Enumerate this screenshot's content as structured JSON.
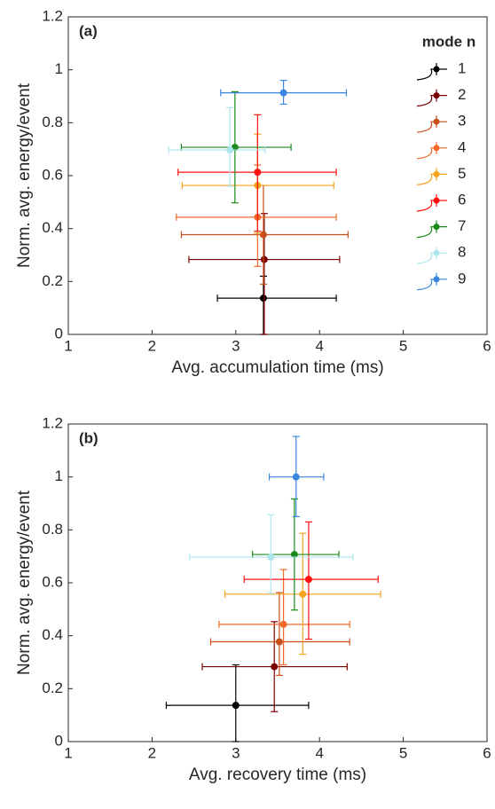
{
  "chart_data": [
    {
      "type": "errorbar-scatter",
      "panel_label": "(a)",
      "xlabel": "Avg. accumulation time (ms)",
      "ylabel": "Norm. avg. energy/event",
      "xlim": [
        1,
        6
      ],
      "ylim": [
        0,
        1.2
      ],
      "xticks": [
        1,
        2,
        3,
        4,
        5,
        6
      ],
      "yticks": [
        0,
        0.2,
        0.4,
        0.6,
        0.8,
        1,
        1.2
      ],
      "legend_title": "mode n",
      "legend_position": "upper right",
      "series": [
        {
          "name": "1",
          "color": "#000000",
          "x": [
            3.33
          ],
          "values": [
            0.137
          ],
          "x_low": [
            2.78
          ],
          "x_high": [
            4.2
          ],
          "y_low": [
            0
          ],
          "y_high": [
            0.22
          ]
        },
        {
          "name": "2",
          "color": "#7a0000",
          "x": [
            3.34
          ],
          "values": [
            0.283
          ],
          "x_low": [
            2.44
          ],
          "x_high": [
            4.24
          ],
          "y_low": [
            0
          ],
          "y_high": [
            0.457
          ]
        },
        {
          "name": "3",
          "color": "#c8501a",
          "x": [
            3.33
          ],
          "values": [
            0.377
          ],
          "x_low": [
            2.35
          ],
          "x_high": [
            4.34
          ],
          "y_low": [
            0.19
          ],
          "y_high": [
            0.563
          ]
        },
        {
          "name": "4",
          "color": "#f06a2a",
          "x": [
            3.26
          ],
          "values": [
            0.443
          ],
          "x_low": [
            2.29
          ],
          "x_high": [
            4.2
          ],
          "y_low": [
            0.257
          ],
          "y_high": [
            0.64
          ]
        },
        {
          "name": "5",
          "color": "#f7a21b",
          "x": [
            3.26
          ],
          "values": [
            0.563
          ],
          "x_low": [
            2.36
          ],
          "x_high": [
            4.17
          ],
          "y_low": [
            0.383
          ],
          "y_high": [
            0.757
          ]
        },
        {
          "name": "6",
          "color": "#ff1010",
          "x": [
            3.26
          ],
          "values": [
            0.613
          ],
          "x_low": [
            2.31
          ],
          "x_high": [
            4.2
          ],
          "y_low": [
            0.39
          ],
          "y_high": [
            0.83
          ]
        },
        {
          "name": "7",
          "color": "#1a8a1a",
          "x": [
            2.99
          ],
          "values": [
            0.707
          ],
          "x_low": [
            2.35
          ],
          "x_high": [
            3.66
          ],
          "y_low": [
            0.497
          ],
          "y_high": [
            0.917
          ]
        },
        {
          "name": "8",
          "color": "#aee6ee",
          "x": [
            2.93
          ],
          "values": [
            0.697
          ],
          "x_low": [
            2.2
          ],
          "x_high": [
            3.35
          ],
          "y_low": [
            0.56
          ],
          "y_high": [
            0.857
          ]
        },
        {
          "name": "9",
          "color": "#3a86e0",
          "x": [
            3.57
          ],
          "values": [
            0.913
          ],
          "x_low": [
            2.82
          ],
          "x_high": [
            4.32
          ],
          "y_low": [
            0.87
          ],
          "y_high": [
            0.96
          ]
        }
      ]
    },
    {
      "type": "errorbar-scatter",
      "panel_label": "(b)",
      "xlabel": "Avg. recovery time (ms)",
      "ylabel": "Norm. avg. energy/event",
      "xlim": [
        1,
        6
      ],
      "ylim": [
        0,
        1.2
      ],
      "xticks": [
        1,
        2,
        3,
        4,
        5,
        6
      ],
      "yticks": [
        0,
        0.2,
        0.4,
        0.6,
        0.8,
        1,
        1.2
      ],
      "series": [
        {
          "color": "#000000",
          "x": [
            3.0
          ],
          "values": [
            0.137
          ],
          "x_low": [
            2.17
          ],
          "x_high": [
            3.87
          ],
          "y_low": [
            0
          ],
          "y_high": [
            0.29
          ]
        },
        {
          "color": "#7a0000",
          "x": [
            3.46
          ],
          "values": [
            0.283
          ],
          "x_low": [
            2.6
          ],
          "x_high": [
            4.33
          ],
          "y_low": [
            0.113
          ],
          "y_high": [
            0.453
          ]
        },
        {
          "color": "#c8501a",
          "x": [
            3.52
          ],
          "values": [
            0.377
          ],
          "x_low": [
            2.7
          ],
          "x_high": [
            4.36
          ],
          "y_low": [
            0.25
          ],
          "y_high": [
            0.563
          ]
        },
        {
          "color": "#f06a2a",
          "x": [
            3.57
          ],
          "values": [
            0.443
          ],
          "x_low": [
            2.8
          ],
          "x_high": [
            4.36
          ],
          "y_low": [
            0.29
          ],
          "y_high": [
            0.65
          ]
        },
        {
          "color": "#f7a21b",
          "x": [
            3.8
          ],
          "values": [
            0.557
          ],
          "x_low": [
            2.87
          ],
          "x_high": [
            4.73
          ],
          "y_low": [
            0.33
          ],
          "y_high": [
            0.787
          ]
        },
        {
          "color": "#ff1010",
          "x": [
            3.87
          ],
          "values": [
            0.613
          ],
          "x_low": [
            3.1
          ],
          "x_high": [
            4.7
          ],
          "y_low": [
            0.387
          ],
          "y_high": [
            0.83
          ]
        },
        {
          "color": "#1a8a1a",
          "x": [
            3.7
          ],
          "values": [
            0.707
          ],
          "x_low": [
            3.2
          ],
          "x_high": [
            4.23
          ],
          "y_low": [
            0.497
          ],
          "y_high": [
            0.917
          ]
        },
        {
          "color": "#aee6ee",
          "x": [
            3.42
          ],
          "values": [
            0.697
          ],
          "x_low": [
            2.45
          ],
          "x_high": [
            4.4
          ],
          "y_low": [
            0.56
          ],
          "y_high": [
            0.857
          ]
        },
        {
          "color": "#3a86e0",
          "x": [
            3.72
          ],
          "values": [
            1.0
          ],
          "x_low": [
            3.4
          ],
          "x_high": [
            4.05
          ],
          "y_low": [
            0.85
          ],
          "y_high": [
            1.153
          ]
        }
      ]
    }
  ]
}
